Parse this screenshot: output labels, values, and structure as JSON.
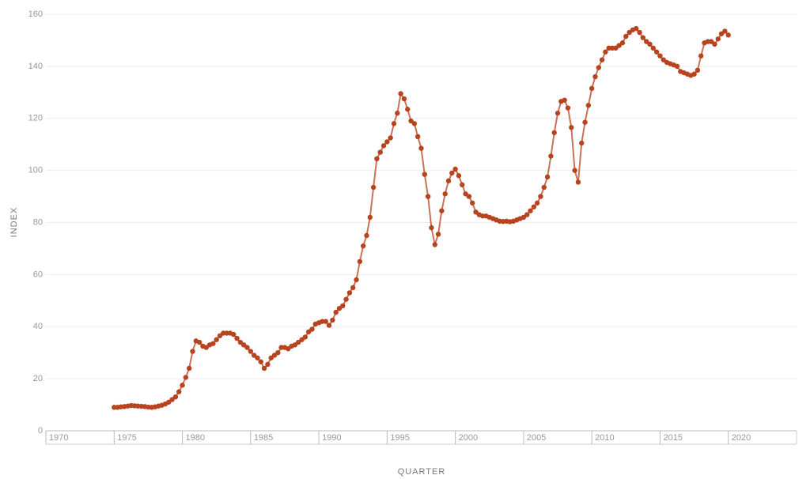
{
  "chart_data": {
    "type": "line",
    "y_label": "INDEX",
    "x_label": "QUARTER",
    "x": [
      1975,
      1975.25,
      1975.5,
      1975.75,
      1976,
      1976.25,
      1976.5,
      1976.75,
      1977,
      1977.25,
      1977.5,
      1977.75,
      1978,
      1978.25,
      1978.5,
      1978.75,
      1979,
      1979.25,
      1979.5,
      1979.75,
      1980,
      1980.25,
      1980.5,
      1980.75,
      1981,
      1981.25,
      1981.5,
      1981.75,
      1982,
      1982.25,
      1982.5,
      1982.75,
      1983,
      1983.25,
      1983.5,
      1983.75,
      1984,
      1984.25,
      1984.5,
      1984.75,
      1985,
      1985.25,
      1985.5,
      1985.75,
      1986,
      1986.25,
      1986.5,
      1986.75,
      1987,
      1987.25,
      1987.5,
      1987.75,
      1988,
      1988.25,
      1988.5,
      1988.75,
      1989,
      1989.25,
      1989.5,
      1989.75,
      1990,
      1990.25,
      1990.5,
      1990.75,
      1991,
      1991.25,
      1991.5,
      1991.75,
      1992,
      1992.25,
      1992.5,
      1992.75,
      1993,
      1993.25,
      1993.5,
      1993.75,
      1994,
      1994.25,
      1994.5,
      1994.75,
      1995,
      1995.25,
      1995.5,
      1995.75,
      1996,
      1996.25,
      1996.5,
      1996.75,
      1997,
      1997.25,
      1997.5,
      1997.75,
      1998,
      1998.25,
      1998.5,
      1998.75,
      1999,
      1999.25,
      1999.5,
      1999.75,
      2000,
      2000.25,
      2000.5,
      2000.75,
      2001,
      2001.25,
      2001.5,
      2001.75,
      2002,
      2002.25,
      2002.5,
      2002.75,
      2003,
      2003.25,
      2003.5,
      2003.75,
      2004,
      2004.25,
      2004.5,
      2004.75,
      2005,
      2005.25,
      2005.5,
      2005.75,
      2006,
      2006.25,
      2006.5,
      2006.75,
      2007,
      2007.25,
      2007.5,
      2007.75,
      2008,
      2008.25,
      2008.5,
      2008.75,
      2009,
      2009.25,
      2009.5,
      2009.75,
      2010,
      2010.25,
      2010.5,
      2010.75,
      2011,
      2011.25,
      2011.5,
      2011.75,
      2012,
      2012.25,
      2012.5,
      2012.75,
      2013,
      2013.25,
      2013.5,
      2013.75,
      2014,
      2014.25,
      2014.5,
      2014.75,
      2015,
      2015.25,
      2015.5,
      2015.75,
      2016,
      2016.25,
      2016.5,
      2016.75,
      2017,
      2017.25,
      2017.5,
      2017.75,
      2018,
      2018.25,
      2018.5,
      2018.75,
      2019,
      2019.25,
      2019.5,
      2019.75,
      2020
    ],
    "series": [
      {
        "color": "#b8431f",
        "values": [
          9,
          9,
          9.2,
          9.3,
          9.5,
          9.7,
          9.6,
          9.5,
          9.4,
          9.3,
          9.1,
          9.0,
          9.2,
          9.5,
          9.8,
          10.3,
          11,
          12,
          13,
          15,
          17.5,
          20.5,
          24,
          30.5,
          34.5,
          34,
          32.5,
          32,
          33,
          33.5,
          35,
          36.5,
          37.5,
          37.5,
          37.5,
          37,
          35.5,
          34,
          33,
          32,
          30.5,
          29,
          28,
          26.5,
          24,
          25.5,
          28,
          29,
          30,
          32,
          32,
          31.5,
          32.5,
          33,
          34,
          35,
          36,
          38,
          39,
          41,
          41.5,
          42,
          42,
          40.5,
          42.5,
          45.5,
          47,
          48,
          50.5,
          53,
          55,
          58,
          65,
          71,
          75,
          82,
          93.5,
          104.5,
          107,
          109.5,
          111,
          112.5,
          118,
          122,
          129.5,
          127.5,
          123.5,
          119,
          118,
          113,
          108.5,
          98.5,
          90,
          78,
          71.5,
          75.5,
          84.5,
          91,
          96,
          99,
          100.5,
          98,
          94.5,
          91,
          90,
          87.5,
          84,
          83,
          82.5,
          82.5,
          82,
          81.5,
          81,
          80.5,
          80.4,
          80.5,
          80.3,
          80.5,
          81,
          81.5,
          82,
          83,
          84.5,
          86,
          87.5,
          90,
          93.5,
          97.5,
          105.5,
          114.5,
          122,
          126.5,
          127,
          124,
          116.5,
          100,
          95.5,
          110.5,
          118.5,
          125,
          131.5,
          136,
          139.5,
          142.5,
          145.5,
          147,
          147,
          147,
          148,
          149,
          151.5,
          153,
          154,
          154.5,
          153,
          151,
          149.5,
          148.5,
          147,
          145.5,
          144,
          142.5,
          141.5,
          141,
          140.5,
          140,
          138,
          137.5,
          137,
          136.5,
          137,
          138.5,
          144,
          149,
          149.5,
          149.5,
          148.5,
          150.5,
          152.5,
          153.5,
          152
        ]
      }
    ],
    "xlim": [
      1970,
      2025
    ],
    "xticks": [
      1970,
      1975,
      1980,
      1985,
      1990,
      1995,
      2000,
      2005,
      2010,
      2015,
      2020
    ],
    "ylim": [
      0,
      160
    ],
    "yticks": [
      0,
      20,
      40,
      60,
      80,
      100,
      120,
      140,
      160
    ],
    "grid": true
  }
}
